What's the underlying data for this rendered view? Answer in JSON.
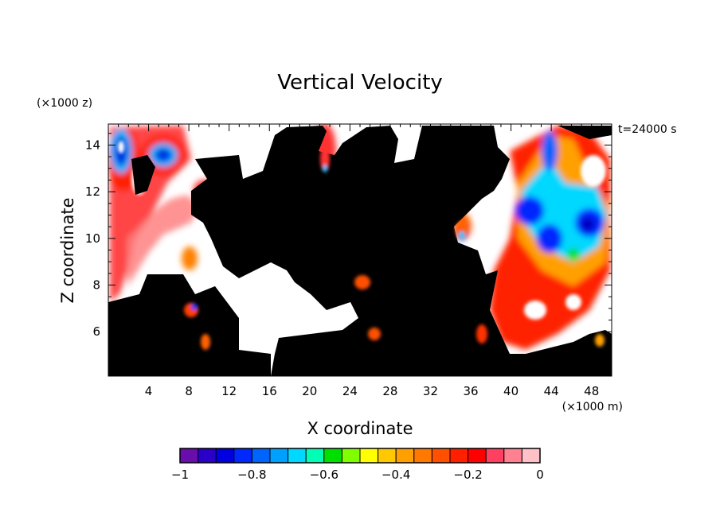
{
  "chart_data": {
    "type": "heatmap",
    "title": "Vertical Velocity",
    "xlabel": "X coordinate",
    "ylabel": "Z coordinate",
    "x_unit_label": "(×1000 m)",
    "y_unit_label": "(×1000 z)",
    "time_label": "t=24000 s",
    "xlim": [
      0,
      50
    ],
    "ylim": [
      4.1,
      14.9
    ],
    "x_ticks": [
      4,
      8,
      12,
      16,
      20,
      24,
      28,
      32,
      36,
      40,
      44,
      48
    ],
    "y_ticks": [
      6,
      8,
      10,
      12,
      14
    ],
    "colorbar": {
      "min": -1,
      "max": 0,
      "tick_values": [
        -1,
        -0.8,
        -0.6,
        -0.4,
        -0.2,
        0
      ],
      "tick_labels": [
        "−1",
        "−0.8",
        "−0.6",
        "−0.4",
        "−0.2",
        "0"
      ],
      "colors": [
        "#6a0dad",
        "#2a00c8",
        "#0000e0",
        "#0028ff",
        "#0064ff",
        "#00a0ff",
        "#00d8ff",
        "#00ffb4",
        "#00e000",
        "#80ff00",
        "#ffff00",
        "#ffc800",
        "#ffa000",
        "#ff7800",
        "#ff5000",
        "#ff2000",
        "#ff0000",
        "#ff4060",
        "#ff8090",
        "#ffc0c8"
      ]
    },
    "masked_color": "#000000"
  }
}
